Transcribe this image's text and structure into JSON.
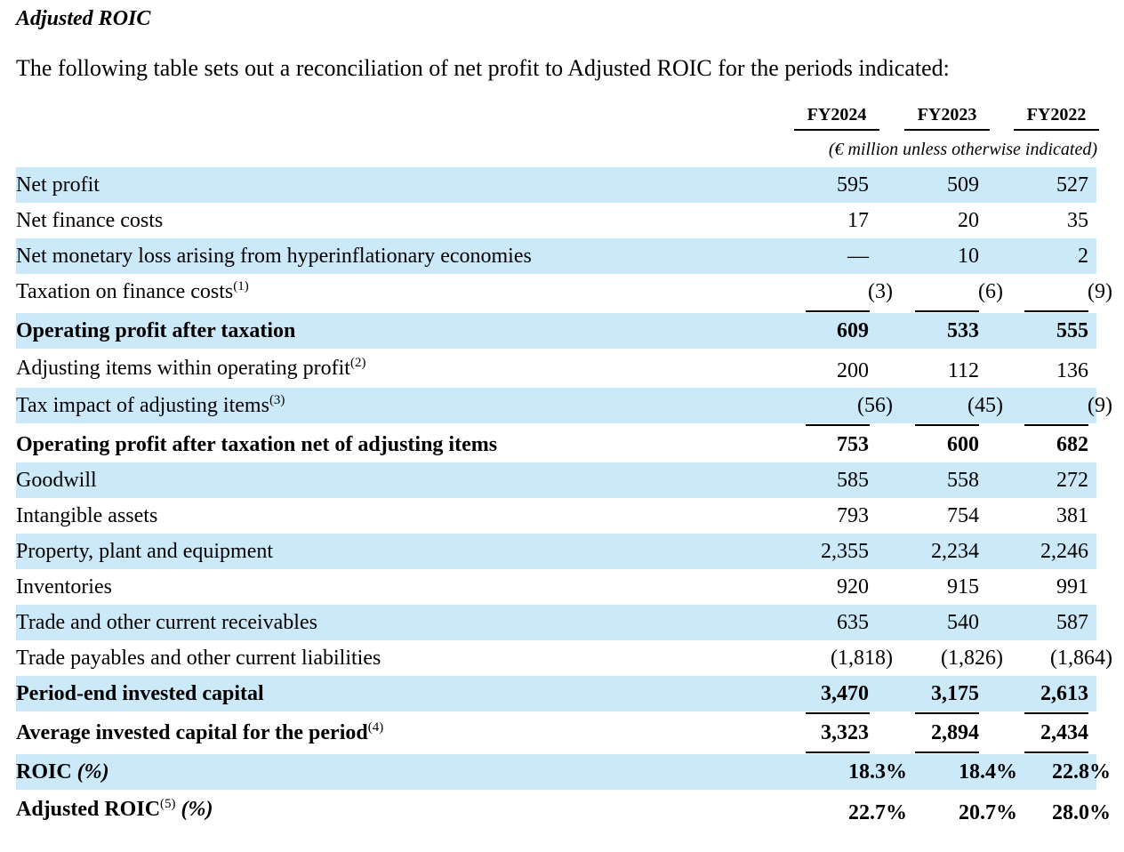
{
  "title": "Adjusted ROIC",
  "intro": "The following table sets out a reconciliation of net profit to Adjusted ROIC for the periods indicated:",
  "columns": [
    "FY2024",
    "FY2023",
    "FY2022"
  ],
  "unit_note": "(€ million unless otherwise indicated)",
  "rows": [
    {
      "label": "Net profit",
      "values": [
        "595",
        "509",
        "527"
      ]
    },
    {
      "label": "Net finance costs",
      "values": [
        "17",
        "20",
        "35"
      ]
    },
    {
      "label": "Net monetary loss arising from hyperinflationary economies",
      "values": [
        "—",
        "10",
        "2"
      ]
    },
    {
      "label": "Taxation on finance costs",
      "note": "(1)",
      "values": [
        "(3)",
        "(6)",
        "(9)"
      ]
    },
    {
      "label": "Operating profit after taxation",
      "values": [
        "609",
        "533",
        "555"
      ]
    },
    {
      "label": "Adjusting items within operating profit",
      "note": "(2)",
      "values": [
        "200",
        "112",
        "136"
      ]
    },
    {
      "label": "Tax impact of adjusting items",
      "note": "(3)",
      "values": [
        "(56)",
        "(45)",
        "(9)"
      ]
    },
    {
      "label": "Operating profit after taxation net of adjusting items",
      "values": [
        "753",
        "600",
        "682"
      ]
    },
    {
      "label": "Goodwill",
      "values": [
        "585",
        "558",
        "272"
      ]
    },
    {
      "label": "Intangible assets",
      "values": [
        "793",
        "754",
        "381"
      ]
    },
    {
      "label": "Property, plant and equipment",
      "values": [
        "2,355",
        "2,234",
        "2,246"
      ]
    },
    {
      "label": "Inventories",
      "values": [
        "920",
        "915",
        "991"
      ]
    },
    {
      "label": "Trade and other current receivables",
      "values": [
        "635",
        "540",
        "587"
      ]
    },
    {
      "label": "Trade payables and other current liabilities",
      "values": [
        "(1,818)",
        "(1,826)",
        "(1,864)"
      ]
    },
    {
      "label": "Period-end invested capital",
      "values": [
        "3,470",
        "3,175",
        "2,613"
      ]
    },
    {
      "label": "Average invested capital for the period",
      "note": "(4)",
      "values": [
        "3,323",
        "2,894",
        "2,434"
      ]
    },
    {
      "label": "ROIC",
      "label_suffix": "(%)",
      "values": [
        "18.3%",
        "18.4%",
        "22.8%"
      ]
    },
    {
      "label": "Adjusted ROIC",
      "note": "(5)",
      "label_suffix": "(%)",
      "values": [
        "22.7%",
        "20.7%",
        "28.0%"
      ]
    }
  ]
}
